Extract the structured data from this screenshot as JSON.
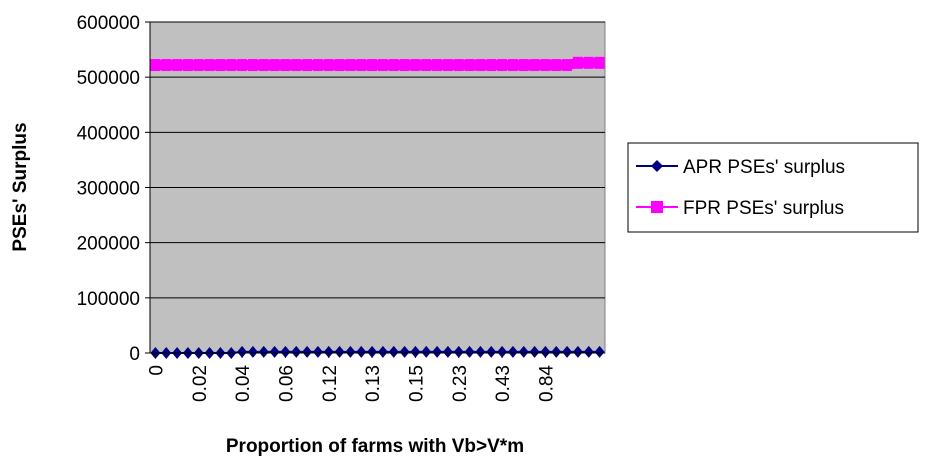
{
  "chart_data": {
    "type": "line",
    "xlabel": "Proportion of farms with Vb>V*m",
    "ylabel": "PSEs' Surplus",
    "ylim": [
      0,
      600000
    ],
    "yticks": [
      0,
      100000,
      200000,
      300000,
      400000,
      500000,
      600000
    ],
    "ytick_labels": [
      "0",
      "100000",
      "200000",
      "300000",
      "400000",
      "500000",
      "600000"
    ],
    "xtick_labels": [
      "0",
      "0.02",
      "0.04",
      "0.06",
      "0.12",
      "0.13",
      "0.15",
      "0.23",
      "0.43",
      "0.84"
    ],
    "grid": true,
    "plot_background": "#c0c0c0",
    "legend_position": "right",
    "series": [
      {
        "name": "APR PSEs' surplus",
        "color": "#000080",
        "marker": "diamond",
        "values": [
          0,
          0,
          0,
          0,
          0,
          0,
          0,
          0,
          2000,
          2000,
          2000,
          2000,
          2000,
          2000,
          2000,
          2000,
          2000,
          2000,
          2000,
          2000,
          2000,
          2000,
          2000,
          2000,
          2000,
          2000,
          2000,
          2000,
          2000,
          2000,
          2000,
          2000,
          2000,
          2000,
          2000,
          2000,
          2000,
          2000,
          2000,
          2000,
          2000,
          2000
        ]
      },
      {
        "name": "FPR PSEs' surplus",
        "color": "#ff00ff",
        "marker": "square",
        "values": [
          522000,
          522000,
          522000,
          522000,
          522000,
          522000,
          522000,
          522000,
          522000,
          522000,
          522000,
          522000,
          522000,
          522000,
          522000,
          522000,
          522000,
          522000,
          522000,
          522000,
          522000,
          522000,
          522000,
          522000,
          522000,
          522000,
          522000,
          522000,
          522000,
          522000,
          522000,
          522000,
          522000,
          522000,
          522000,
          522000,
          522000,
          522000,
          522000,
          526000,
          526000,
          526000
        ]
      }
    ]
  }
}
